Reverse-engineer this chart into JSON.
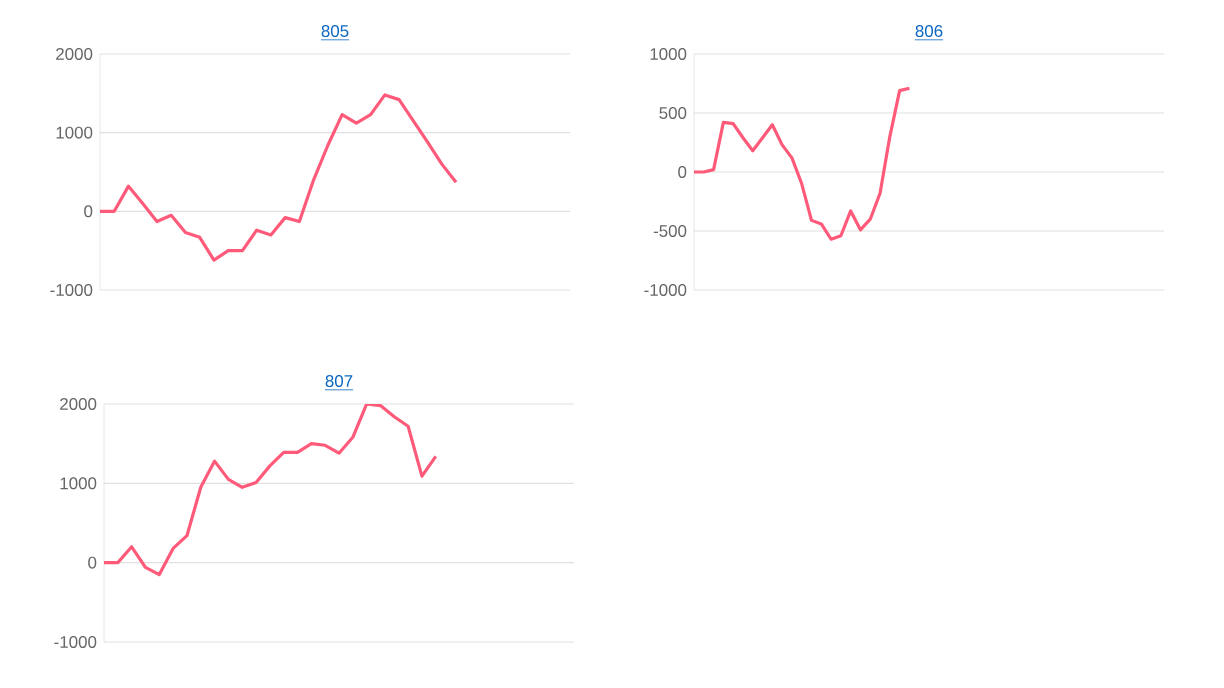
{
  "chart_data": [
    {
      "type": "line",
      "title": "805",
      "color": "#ff5a79",
      "grid": "y",
      "tick_labels": "y",
      "marker": "none",
      "line_style": "solid",
      "ylim": [
        -1000,
        2000
      ],
      "yticks": [
        -1000,
        0,
        1000,
        2000
      ],
      "categories": [
        null,
        null,
        null,
        null,
        null,
        null,
        null,
        null,
        null,
        null,
        null,
        null,
        null,
        null,
        null,
        null,
        null,
        null,
        null,
        null,
        null,
        null,
        null,
        null,
        null,
        null,
        null,
        null,
        null,
        null,
        null,
        null,
        null,
        null
      ],
      "values": [
        0,
        0,
        320,
        100,
        -130,
        -50,
        -270,
        -330,
        -620,
        -500,
        -500,
        -240,
        -300,
        -80,
        -130,
        400,
        840,
        1230,
        1120,
        1230,
        1480,
        1420,
        1150,
        880,
        600,
        370,
        null,
        null,
        null,
        null,
        null,
        null,
        null,
        null
      ]
    },
    {
      "type": "line",
      "title": "806",
      "color": "#ff5a79",
      "grid": "y",
      "tick_labels": "y",
      "marker": "none",
      "line_style": "solid",
      "ylim": [
        -1000,
        1000
      ],
      "yticks": [
        -1000,
        -500,
        0,
        500,
        1000
      ],
      "categories": [
        null,
        null,
        null,
        null,
        null,
        null,
        null,
        null,
        null,
        null,
        null,
        null,
        null,
        null,
        null,
        null,
        null,
        null,
        null,
        null,
        null,
        null,
        null,
        null,
        null,
        null,
        null,
        null,
        null,
        null,
        null,
        null,
        null,
        null,
        null,
        null,
        null,
        null,
        null,
        null,
        null,
        null,
        null,
        null,
        null,
        null,
        null,
        null,
        null
      ],
      "values": [
        0,
        0,
        20,
        420,
        410,
        290,
        180,
        290,
        400,
        230,
        120,
        -100,
        -410,
        -440,
        -570,
        -540,
        -330,
        -490,
        -400,
        -180,
        300,
        690,
        710,
        null,
        null,
        null,
        null,
        null,
        null,
        null,
        null,
        null,
        null,
        null,
        null,
        null,
        null,
        null,
        null,
        null,
        null,
        null,
        null,
        null,
        null,
        null,
        null,
        null,
        null
      ]
    },
    {
      "type": "line",
      "title": "807",
      "color": "#ff5a79",
      "grid": "y",
      "tick_labels": "y",
      "marker": "none",
      "line_style": "solid",
      "ylim": [
        -1000,
        2000
      ],
      "yticks": [
        -1000,
        0,
        1000,
        2000
      ],
      "categories": [
        null,
        null,
        null,
        null,
        null,
        null,
        null,
        null,
        null,
        null,
        null,
        null,
        null,
        null,
        null,
        null,
        null,
        null,
        null,
        null,
        null,
        null,
        null,
        null,
        null,
        null,
        null,
        null,
        null,
        null,
        null,
        null,
        null,
        null,
        null
      ],
      "values": [
        0,
        0,
        200,
        -60,
        -150,
        180,
        340,
        950,
        1280,
        1050,
        950,
        1010,
        1220,
        1390,
        1390,
        1500,
        1480,
        1380,
        1580,
        2000,
        1980,
        1840,
        1720,
        1090,
        1340,
        null,
        null,
        null,
        null,
        null,
        null,
        null,
        null,
        null,
        null
      ]
    }
  ]
}
